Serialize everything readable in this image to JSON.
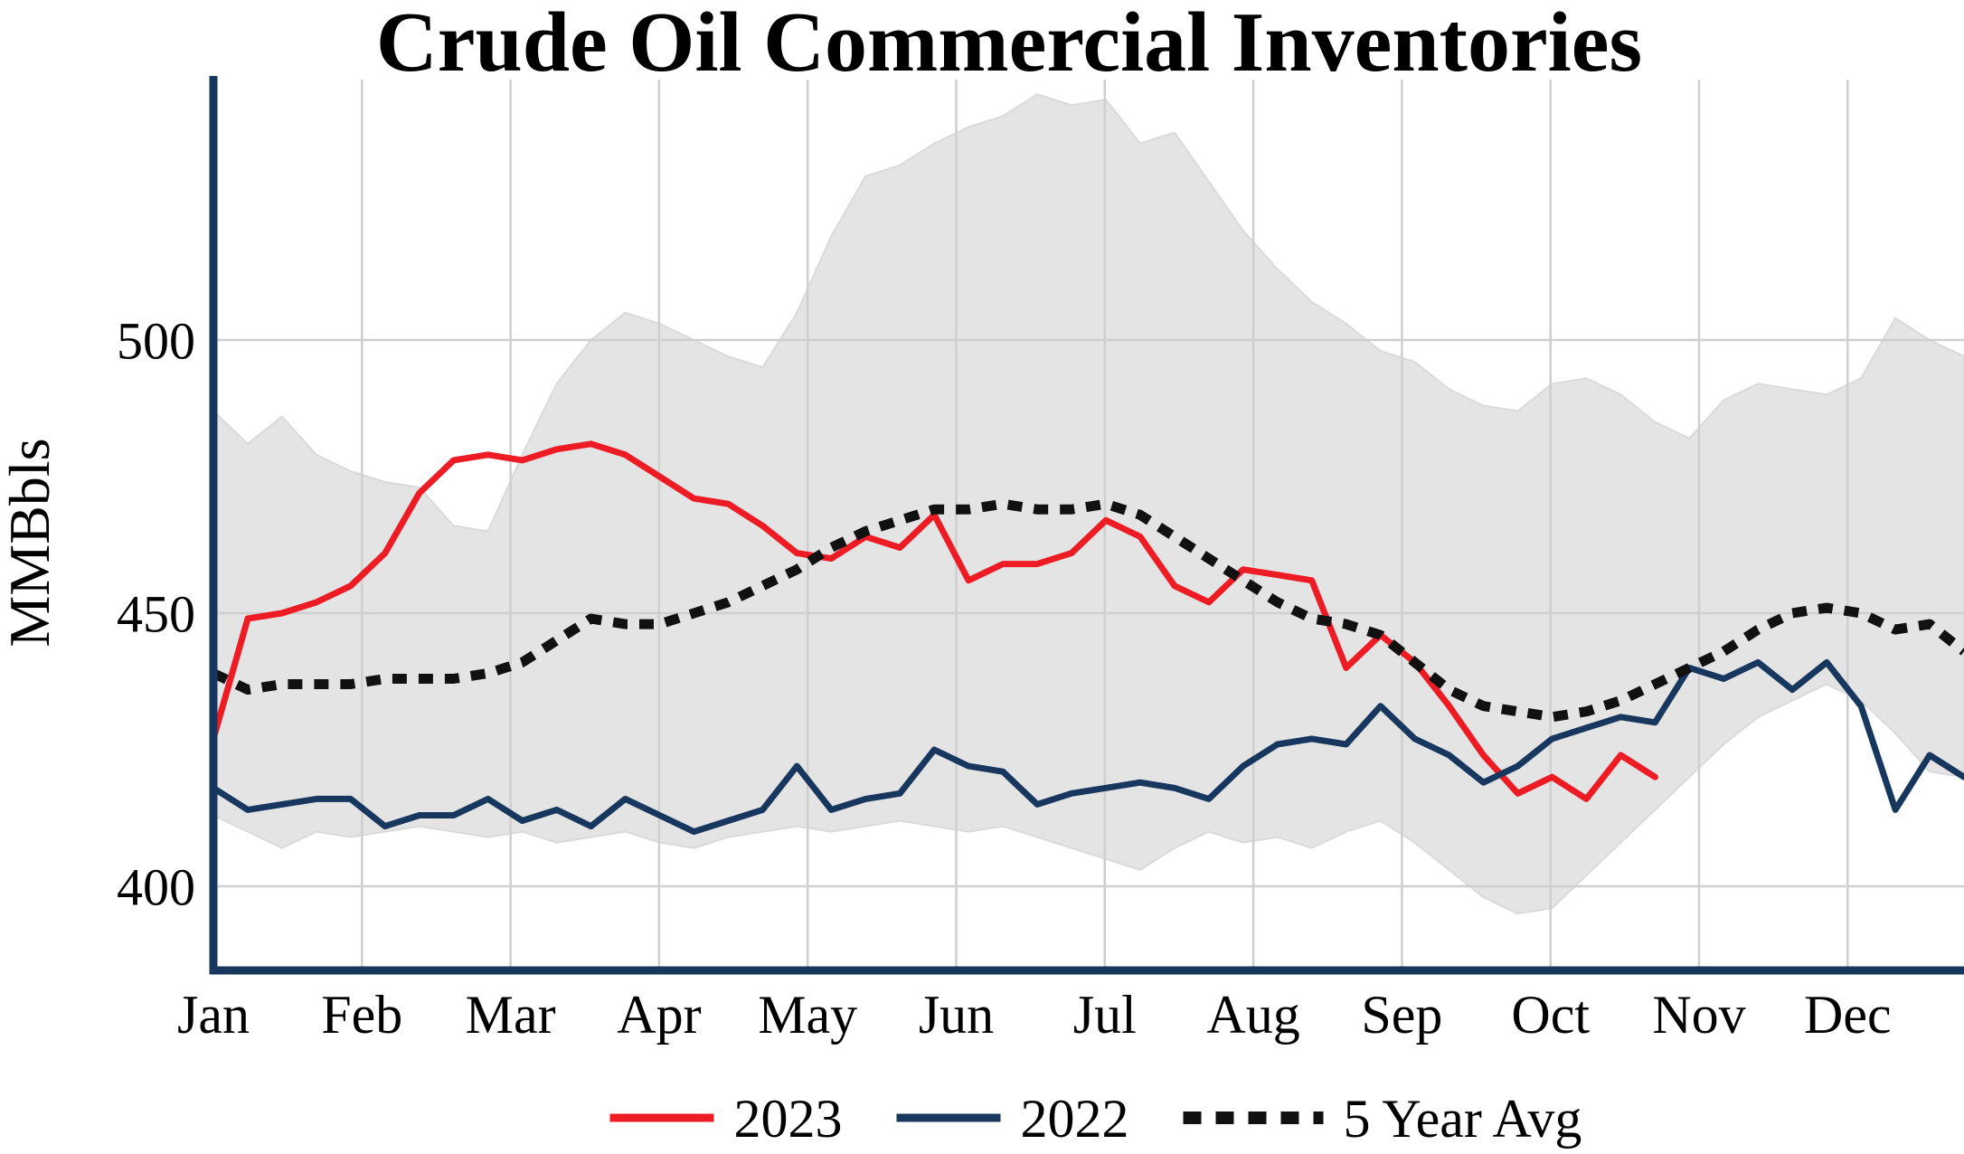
{
  "title": "Crude Oil Commercial Inventories",
  "ylabel": "MMBbls",
  "colors": {
    "red_2023": "#ed1c24",
    "navy_2022": "#17375e",
    "avg_black": "#111111",
    "band_gray": "#e4e4e4",
    "grid_gray": "#cfcfcf",
    "axis_navy": "#17375e",
    "background": "#ffffff"
  },
  "legend": [
    {
      "label": "2023",
      "color": "#ed1c24",
      "style": "solid"
    },
    {
      "label": "2022",
      "color": "#17375e",
      "style": "solid"
    },
    {
      "label": "5 Year Avg",
      "color": "#111111",
      "style": "dotted"
    }
  ],
  "chart_data": {
    "type": "line",
    "title": "Crude Oil Commercial Inventories",
    "ylabel": "MMBbls",
    "xlabel": "",
    "grid": true,
    "legend_position": "bottom",
    "x_axis": {
      "unit": "weekly",
      "tick_labels": [
        "Jan",
        "Feb",
        "Mar",
        "Apr",
        "May",
        "Jun",
        "Jul",
        "Aug",
        "Sep",
        "Oct",
        "Nov",
        "Dec"
      ]
    },
    "y_axis": {
      "ticks": [
        400,
        450,
        500
      ],
      "range": [
        384,
        548
      ]
    },
    "series": [
      {
        "name": "2023",
        "color": "#ed1c24",
        "style": "solid",
        "values": [
          427,
          449,
          450,
          452,
          455,
          461,
          472,
          478,
          479,
          478,
          480,
          481,
          479,
          475,
          471,
          470,
          466,
          461,
          460,
          464,
          462,
          468,
          456,
          459,
          459,
          461,
          467,
          464,
          455,
          452,
          458,
          457,
          456,
          440,
          446,
          441,
          433,
          424,
          417,
          420,
          416,
          424,
          420
        ]
      },
      {
        "name": "2022",
        "color": "#17375e",
        "style": "solid",
        "values": [
          418,
          414,
          415,
          416,
          416,
          411,
          413,
          413,
          416,
          412,
          414,
          411,
          416,
          413,
          410,
          412,
          414,
          422,
          414,
          416,
          417,
          425,
          422,
          421,
          415,
          417,
          418,
          419,
          418,
          416,
          422,
          426,
          427,
          426,
          433,
          427,
          424,
          419,
          422,
          427,
          429,
          431,
          430,
          440,
          438,
          441,
          436,
          441,
          433,
          414,
          424,
          420
        ]
      },
      {
        "name": "5 Year Avg",
        "color": "#111111",
        "style": "dotted",
        "values": [
          439,
          436,
          437,
          437,
          437,
          438,
          438,
          438,
          439,
          441,
          445,
          449,
          448,
          448,
          450,
          452,
          455,
          458,
          462,
          465,
          467,
          469,
          469,
          470,
          469,
          469,
          470,
          468,
          464,
          460,
          456,
          452,
          449,
          448,
          446,
          441,
          436,
          433,
          432,
          431,
          432,
          434,
          437,
          440,
          443,
          447,
          450,
          451,
          450,
          447,
          448,
          443
        ]
      }
    ],
    "band": {
      "color": "#e4e4e4",
      "upper": [
        487,
        481,
        486,
        479,
        476,
        474,
        473,
        466,
        465,
        479,
        492,
        500,
        505,
        503,
        500,
        497,
        495,
        505,
        519,
        530,
        532,
        536,
        539,
        541,
        545,
        543,
        544,
        536,
        538,
        529,
        520,
        513,
        507,
        503,
        498,
        496,
        491,
        488,
        487,
        492,
        493,
        490,
        485,
        482,
        489,
        492,
        491,
        490,
        493,
        504,
        500,
        497
      ],
      "lower": [
        413,
        410,
        407,
        410,
        409,
        410,
        411,
        410,
        409,
        410,
        408,
        409,
        410,
        408,
        407,
        409,
        410,
        411,
        410,
        411,
        412,
        411,
        410,
        411,
        409,
        407,
        405,
        403,
        407,
        410,
        408,
        409,
        407,
        410,
        412,
        408,
        403,
        398,
        395,
        396,
        402,
        408,
        414,
        420,
        426,
        431,
        434,
        437,
        434,
        428,
        421,
        420
      ]
    }
  }
}
